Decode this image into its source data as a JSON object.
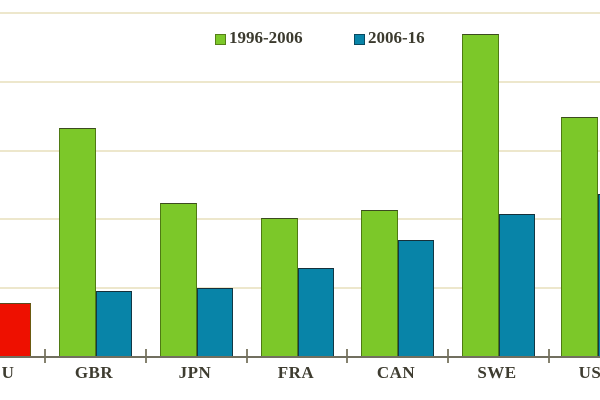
{
  "chart_data": {
    "type": "bar",
    "title": "",
    "xlabel": "",
    "ylabel": "",
    "categories": [
      "U",
      "GBR",
      "JPN",
      "FRA",
      "CAN",
      "SWE",
      "US"
    ],
    "series": [
      {
        "name": "1996-2006",
        "color": "#7cc829",
        "values": [
          null,
          3.33,
          2.24,
          2.02,
          2.14,
          4.7,
          3.49
        ]
      },
      {
        "name": "2006-16",
        "color": "#0884a8",
        "values": [
          0.78,
          0.96,
          1.0,
          1.29,
          1.7,
          2.08,
          2.37
        ]
      }
    ],
    "highlight": {
      "category_index": 0,
      "series_index": 1,
      "color": "#ee1000"
    },
    "ylim": [
      0,
      5.2
    ],
    "gridlines": [
      1,
      2,
      3,
      4,
      5
    ],
    "y_axis_labels_visible": false,
    "value_unit": "gridline units (y-axis scale cropped out of view)",
    "legend_position": "top-center",
    "grid": true
  },
  "colors": {
    "background": "#ffffff",
    "gridline": "#ede7cc",
    "axis": "#716f5f",
    "label_text": "#3e3c30"
  }
}
